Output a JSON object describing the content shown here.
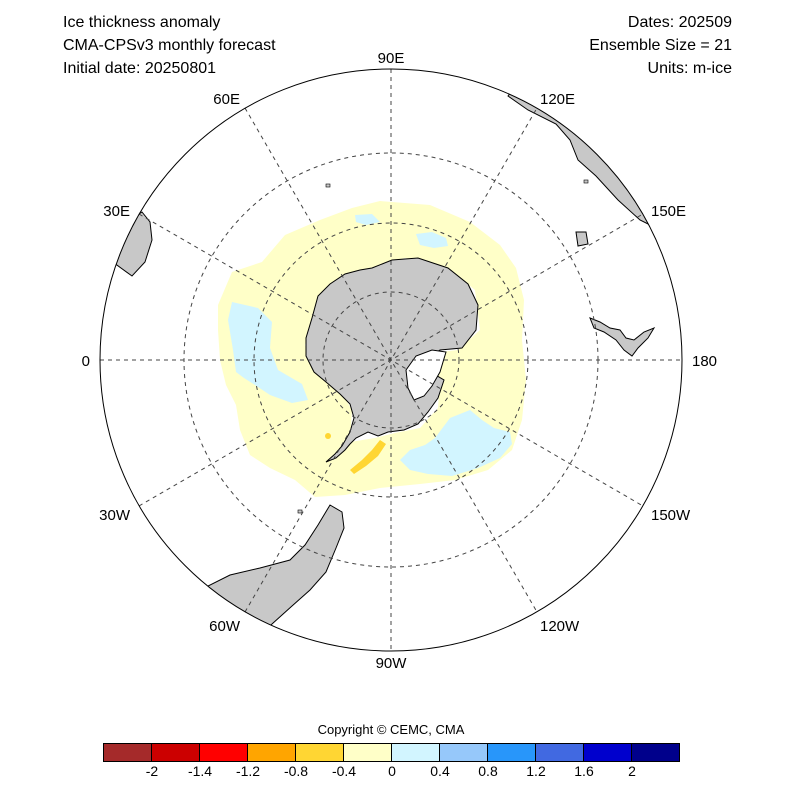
{
  "header": {
    "left": [
      "Ice thickness anomaly",
      "CMA-CPSv3 monthly forecast",
      "Initial date: 20250801"
    ],
    "right": [
      "Dates: 202509",
      "Ensemble Size = 21",
      "Units: m-ice"
    ]
  },
  "map": {
    "projection": "south-polar-stereographic",
    "longitude_labels": [
      "90E",
      "120E",
      "150E",
      "180",
      "150W",
      "120W",
      "90W",
      "60W",
      "30W",
      "0",
      "30E",
      "60E"
    ],
    "colors": {
      "land": "#c8c8c8",
      "ocean": "#ffffff",
      "grid": "#444444"
    }
  },
  "copyright": "Copyright © CEMC, CMA",
  "colorbar": {
    "colors": [
      "#a52a2a",
      "#cc0000",
      "#ff0000",
      "#ffa500",
      "#ffd633",
      "#ffffc8",
      "#d2f5ff",
      "#96c8fa",
      "#2896fa",
      "#4169e1",
      "#0000cd",
      "#00008b"
    ],
    "tick_labels": [
      "-2",
      "-1.4",
      "-1.2",
      "-0.8",
      "-0.4",
      "0",
      "0.4",
      "0.8",
      "1.2",
      "1.6",
      "2"
    ]
  }
}
